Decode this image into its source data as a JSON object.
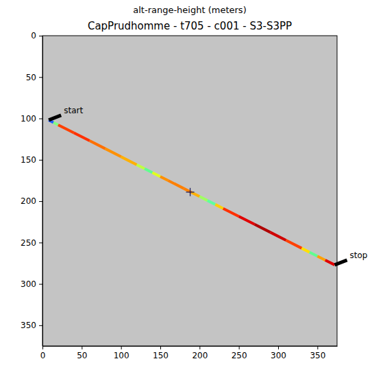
{
  "chart_data": {
    "type": "line",
    "supertitle": "alt-range-height (meters)",
    "title": "CapPrudhomme - t705 - c001 - S3-S3PP",
    "x": [
      8,
      14,
      20,
      40,
      60,
      80,
      100,
      120,
      130,
      140,
      150,
      160,
      180,
      190,
      200,
      210,
      220,
      230,
      250,
      270,
      290,
      310,
      330,
      340,
      350,
      360,
      372
    ],
    "values": [
      102,
      104.9,
      107.8,
      117.4,
      127.0,
      136.6,
      146.3,
      155.9,
      160.7,
      165.5,
      170.3,
      175.1,
      184.7,
      189.5,
      194.3,
      199.2,
      204.0,
      208.8,
      218.4,
      228.0,
      237.6,
      247.3,
      256.9,
      261.7,
      266.5,
      271.3,
      277
    ],
    "colors": [
      "#2060ff",
      "#80ff80",
      "#ff4000",
      "#ff3000",
      "#ff7000",
      "#ff9000",
      "#ffb000",
      "#c0ff40",
      "#60ff90",
      "#e0ff20",
      "#ff9000",
      "#ff8000",
      "#ff8000",
      "#ffb000",
      "#a0ff60",
      "#60ffa0",
      "#ffd000",
      "#ff3000",
      "#e00000",
      "#b00000",
      "#d00000",
      "#ff4000",
      "#ffe000",
      "#60ff90",
      "#ffa000",
      "#e00000"
    ],
    "center": {
      "x": 188,
      "y": 189
    },
    "annotations": [
      {
        "text": "start",
        "x": 8,
        "y": 102
      },
      {
        "text": "stop",
        "x": 372,
        "y": 277
      }
    ],
    "xlim": [
      0,
      375
    ],
    "ylim": [
      375,
      0
    ],
    "xticks": [
      0,
      50,
      100,
      150,
      200,
      250,
      300,
      350
    ],
    "yticks": [
      0,
      50,
      100,
      150,
      200,
      250,
      300,
      350
    ],
    "grid": false
  }
}
